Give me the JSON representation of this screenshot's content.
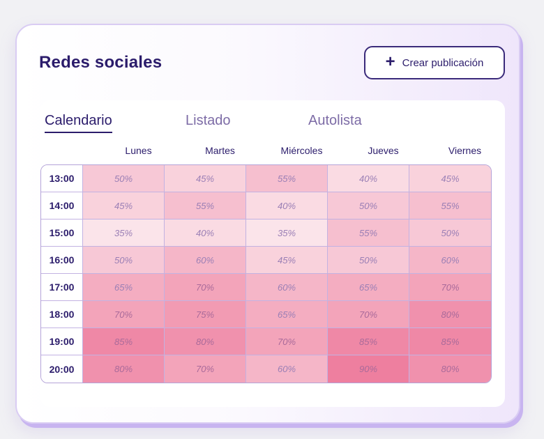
{
  "header": {
    "title": "Redes sociales",
    "create_label": "Crear publicación",
    "create_icon": "plus-icon"
  },
  "tabs": [
    {
      "label": "Calendario",
      "active": true
    },
    {
      "label": "Listado",
      "active": false
    },
    {
      "label": "Autolista",
      "active": false
    }
  ],
  "days": [
    "Lunes",
    "Martes",
    "Miércoles",
    "Jueves",
    "Viernes"
  ],
  "schedule": [
    {
      "time": "13:00",
      "values": [
        "50%",
        "45%",
        "55%",
        "40%",
        "45%"
      ]
    },
    {
      "time": "14:00",
      "values": [
        "45%",
        "55%",
        "40%",
        "50%",
        "55%"
      ]
    },
    {
      "time": "15:00",
      "values": [
        "35%",
        "40%",
        "35%",
        "55%",
        "50%"
      ]
    },
    {
      "time": "16:00",
      "values": [
        "50%",
        "60%",
        "45%",
        "50%",
        "60%"
      ]
    },
    {
      "time": "17:00",
      "values": [
        "65%",
        "70%",
        "60%",
        "65%",
        "70%"
      ]
    },
    {
      "time": "18:00",
      "values": [
        "70%",
        "75%",
        "65%",
        "70%",
        "80%"
      ]
    },
    {
      "time": "19:00",
      "values": [
        "85%",
        "80%",
        "70%",
        "85%",
        "85%"
      ]
    },
    {
      "time": "20:00",
      "values": [
        "80%",
        "70%",
        "60%",
        "90%",
        "80%"
      ]
    }
  ],
  "colors": {
    "accent": "#2b1c6b",
    "heat_low": "#fbe4ea",
    "heat_high": "#ee7f9f",
    "border": "#b4a3d8"
  }
}
